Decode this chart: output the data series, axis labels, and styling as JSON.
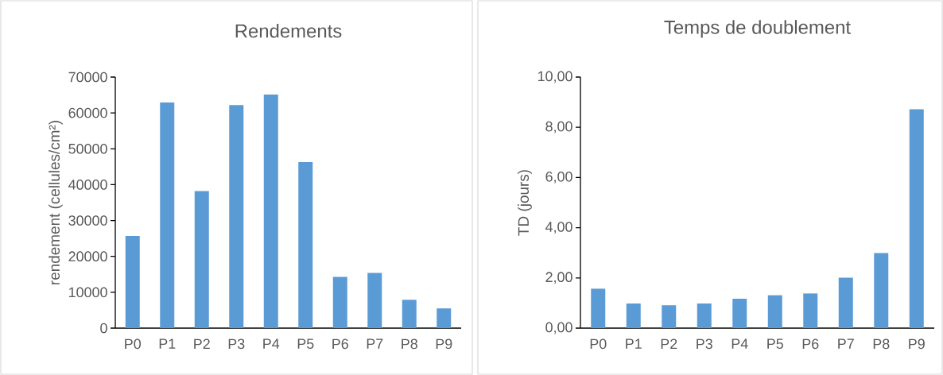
{
  "chart_data": [
    {
      "type": "bar",
      "title": "Rendements",
      "ylabel": "rendement (cellules/cm²)",
      "categories": [
        "P0",
        "P1",
        "P2",
        "P3",
        "P4",
        "P5",
        "P6",
        "P7",
        "P8",
        "P9"
      ],
      "values": [
        25700,
        62900,
        38200,
        62200,
        65100,
        46300,
        14300,
        15400,
        7900,
        5500
      ],
      "color": "#5b9bd5",
      "ylim": [
        0,
        70000
      ],
      "yticks": [
        0,
        10000,
        20000,
        30000,
        40000,
        50000,
        60000,
        70000
      ]
    },
    {
      "type": "bar",
      "title": "Temps de doublement",
      "ylabel": "TD (jours)",
      "categories": [
        "P0",
        "P1",
        "P2",
        "P3",
        "P4",
        "P5",
        "P6",
        "P7",
        "P8",
        "P9"
      ],
      "values": [
        1.57,
        0.98,
        0.91,
        0.98,
        1.17,
        1.31,
        1.38,
        2.01,
        2.99,
        8.72
      ],
      "color": "#5b9bd5",
      "ylim": [
        0,
        10
      ],
      "yticks": [
        {
          "value": 0,
          "label": "0,00"
        },
        {
          "value": 2,
          "label": "2,00"
        },
        {
          "value": 4,
          "label": "4,00"
        },
        {
          "value": 6,
          "label": "6,00"
        },
        {
          "value": 8,
          "label": "8,00"
        },
        {
          "value": 10,
          "label": "10,00"
        }
      ]
    }
  ]
}
